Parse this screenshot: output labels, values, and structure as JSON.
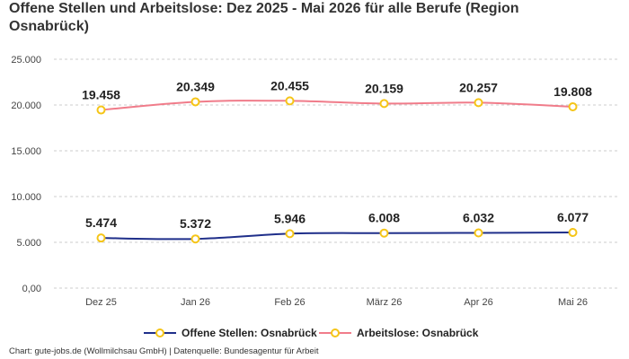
{
  "chart_data": {
    "type": "line",
    "title": "Offene Stellen und Arbeitslose: Dez 2025 - Mai 2026 für alle Berufe (Region Osnabrück)",
    "categories": [
      "Dez 25",
      "Jan 26",
      "Feb 26",
      "März 26",
      "Apr 26",
      "Mai 26"
    ],
    "ylim": [
      0,
      25000
    ],
    "yticks": [
      0,
      5000,
      10000,
      15000,
      20000,
      25000
    ],
    "ytick_labels": [
      "0,00",
      "5.000",
      "10.000",
      "15.000",
      "20.000",
      "25.000"
    ],
    "grid": true,
    "legend_position": "bottom",
    "series": [
      {
        "name": "Offene Stellen: Osnabrück",
        "color": "#1f2f8a",
        "values": [
          5474,
          5372,
          5946,
          6008,
          6032,
          6077
        ],
        "labels": [
          "5.474",
          "5.372",
          "5.946",
          "6.008",
          "6.032",
          "6.077"
        ]
      },
      {
        "name": "Arbeitslose: Osnabrück",
        "color": "#f07c8a",
        "values": [
          19458,
          20349,
          20455,
          20159,
          20257,
          19808
        ],
        "labels": [
          "19.458",
          "20.349",
          "20.455",
          "20.159",
          "20.257",
          "19.808"
        ]
      }
    ],
    "marker_color": "#f5c518"
  },
  "credits": "Chart: gute-jobs.de (Wollmilchsau GmbH) | Datenquelle: Bundesagentur für Arbeit"
}
